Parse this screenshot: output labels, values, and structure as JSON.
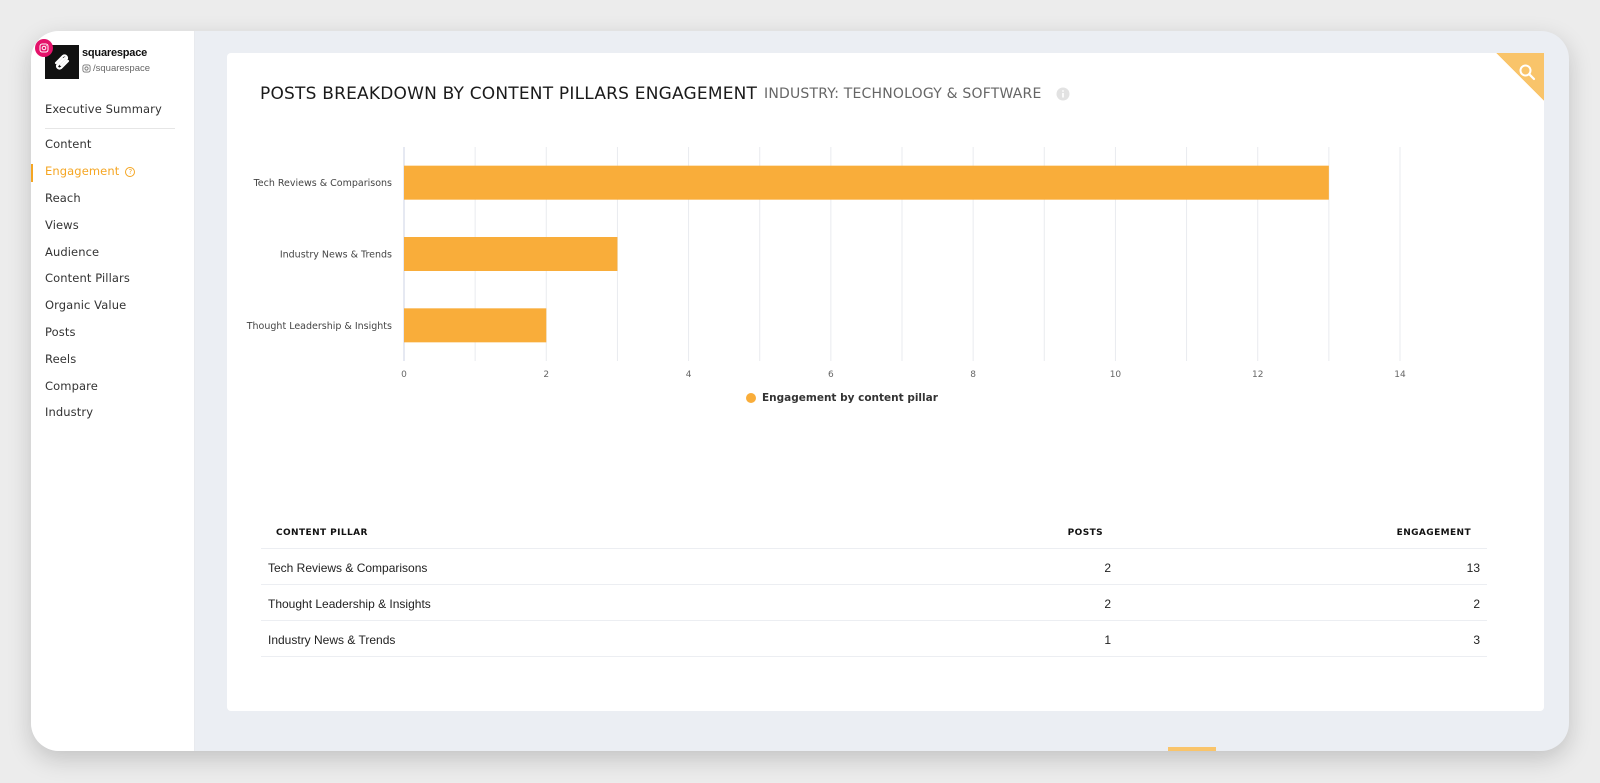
{
  "profile": {
    "name": "squarespace",
    "handle": "/squarespace",
    "badge_icon": "instagram-icon"
  },
  "sidebar": {
    "items": [
      {
        "label": "Executive Summary"
      },
      {
        "label": "Content"
      },
      {
        "label": "Engagement"
      },
      {
        "label": "Reach"
      },
      {
        "label": "Views"
      },
      {
        "label": "Audience"
      },
      {
        "label": "Content Pillars"
      },
      {
        "label": "Organic Value"
      },
      {
        "label": "Posts"
      },
      {
        "label": "Reels"
      },
      {
        "label": "Compare"
      },
      {
        "label": "Industry"
      }
    ],
    "active": "Engagement"
  },
  "card": {
    "title": "POSTS BREAKDOWN BY CONTENT PILLARS ENGAGEMENT",
    "subtitle": "INDUSTRY: TECHNOLOGY & SOFTWARE"
  },
  "chart_data": {
    "type": "bar",
    "orientation": "horizontal",
    "categories": [
      "Tech Reviews & Comparisons",
      "Industry News & Trends",
      "Thought Leadership & Insights"
    ],
    "series": [
      {
        "name": "Engagement by content pillar",
        "values": [
          13,
          3,
          2
        ],
        "color": "#f9ad3a"
      }
    ],
    "xlim": [
      0,
      14
    ],
    "x_ticks": [
      "0",
      "2",
      "4",
      "6",
      "8",
      "10",
      "12",
      "14"
    ],
    "grid": true,
    "legend": "bottom-center"
  },
  "table": {
    "headers": {
      "pillar": "CONTENT PILLAR",
      "posts": "POSTS",
      "engagement": "ENGAGEMENT"
    },
    "rows": [
      {
        "pillar": "Tech Reviews & Comparisons",
        "posts": "2",
        "engagement": "13"
      },
      {
        "pillar": "Thought Leadership & Insights",
        "posts": "2",
        "engagement": "2"
      },
      {
        "pillar": "Industry News & Trends",
        "posts": "1",
        "engagement": "3"
      }
    ]
  },
  "colors": {
    "accent": "#f5a623",
    "bar": "#f9ad3a",
    "instagram": "#e4126a"
  }
}
